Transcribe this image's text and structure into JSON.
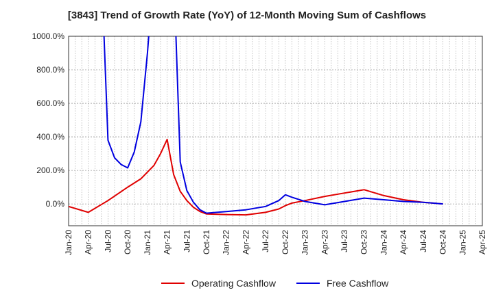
{
  "title": "[3843]  Trend of Growth Rate (YoY) of 12-Month Moving Sum of Cashflows",
  "colors": {
    "operating": "#e00000",
    "free": "#0000e0",
    "grid": "#999999",
    "axis": "#333333"
  },
  "chart_data": {
    "type": "line",
    "title": "[3843]  Trend of Growth Rate (YoY) of 12-Month Moving Sum of Cashflows",
    "xlabel": "",
    "ylabel": "",
    "x_start": "2020-01",
    "x_end": "2025-04",
    "ylim": [
      -130,
      1000
    ],
    "grid": true,
    "legend_position": "bottom",
    "y_ticks": [
      {
        "value": 0,
        "label": "0.0%"
      },
      {
        "value": 200,
        "label": "200.0%"
      },
      {
        "value": 400,
        "label": "400.0%"
      },
      {
        "value": 600,
        "label": "600.0%"
      },
      {
        "value": 800,
        "label": "800.0%"
      },
      {
        "value": 1000,
        "label": "1000.0%"
      }
    ],
    "x_ticks": [
      "Jan-20",
      "Apr-20",
      "Jul-20",
      "Oct-20",
      "Jan-21",
      "Apr-21",
      "Jul-21",
      "Oct-21",
      "Jan-22",
      "Apr-22",
      "Jul-22",
      "Oct-22",
      "Jan-23",
      "Apr-23",
      "Jul-23",
      "Oct-23",
      "Jan-24",
      "Apr-24",
      "Jul-24",
      "Oct-24",
      "Jan-25",
      "Apr-25"
    ],
    "series": [
      {
        "name": "Operating Cashflow",
        "color": "#e00000",
        "points": [
          [
            "2020-01",
            -15
          ],
          [
            "2020-04",
            -50
          ],
          [
            "2020-07",
            20
          ],
          [
            "2020-10",
            100
          ],
          [
            "2020-12",
            150
          ],
          [
            "2021-02",
            230
          ],
          [
            "2021-03",
            300
          ],
          [
            "2021-04",
            385
          ],
          [
            "2021-05",
            175
          ],
          [
            "2021-06",
            75
          ],
          [
            "2021-07",
            20
          ],
          [
            "2021-08",
            -20
          ],
          [
            "2021-09",
            -45
          ],
          [
            "2021-10",
            -60
          ],
          [
            "2022-01",
            -63
          ],
          [
            "2022-04",
            -65
          ],
          [
            "2022-07",
            -50
          ],
          [
            "2022-09",
            -30
          ],
          [
            "2022-10",
            -10
          ],
          [
            "2022-11",
            5
          ],
          [
            "2023-01",
            20
          ],
          [
            "2023-04",
            45
          ],
          [
            "2023-07",
            65
          ],
          [
            "2023-10",
            85
          ],
          [
            "2024-01",
            50
          ],
          [
            "2024-04",
            25
          ],
          [
            "2024-07",
            10
          ],
          [
            "2024-10",
            0
          ]
        ]
      },
      {
        "name": "Free Cashflow",
        "color": "#0000e0",
        "points": [
          [
            "2020-06",
            1400
          ],
          [
            "2020-07",
            380
          ],
          [
            "2020-08",
            275
          ],
          [
            "2020-09",
            235
          ],
          [
            "2020-10",
            215
          ],
          [
            "2020-11",
            310
          ],
          [
            "2020-12",
            490
          ],
          [
            "2021-01",
            900
          ],
          [
            "2021-02",
            1400
          ],
          [
            "2021-05",
            1400
          ],
          [
            "2021-06",
            250
          ],
          [
            "2021-07",
            80
          ],
          [
            "2021-08",
            10
          ],
          [
            "2021-09",
            -35
          ],
          [
            "2021-10",
            -55
          ],
          [
            "2022-01",
            -45
          ],
          [
            "2022-04",
            -35
          ],
          [
            "2022-07",
            -15
          ],
          [
            "2022-09",
            20
          ],
          [
            "2022-10",
            55
          ],
          [
            "2022-11",
            40
          ],
          [
            "2023-01",
            15
          ],
          [
            "2023-04",
            -5
          ],
          [
            "2023-07",
            15
          ],
          [
            "2023-10",
            35
          ],
          [
            "2024-01",
            25
          ],
          [
            "2024-04",
            15
          ],
          [
            "2024-07",
            10
          ],
          [
            "2024-10",
            0
          ]
        ]
      }
    ]
  }
}
